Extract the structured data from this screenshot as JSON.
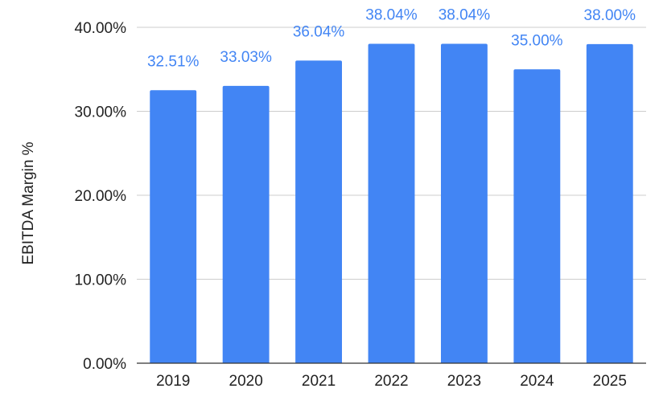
{
  "chart_data": {
    "type": "bar",
    "categories": [
      "2019",
      "2020",
      "2021",
      "2022",
      "2023",
      "2024",
      "2025"
    ],
    "values": [
      32.51,
      33.03,
      36.04,
      38.04,
      38.04,
      35.0,
      38.0
    ],
    "data_labels": [
      "32.51%",
      "33.03%",
      "36.04%",
      "38.04%",
      "38.04%",
      "35.00%",
      "38.00%"
    ],
    "ylabel": "EBITDA Margin %",
    "yticks": [
      0,
      10,
      20,
      30,
      40
    ],
    "ytick_labels": [
      "0.00%",
      "10.00%",
      "20.00%",
      "30.00%",
      "40.00%"
    ],
    "ylim": [
      0,
      40
    ],
    "grid": true,
    "bar_color": "#4285f4",
    "label_color": "#4285f4",
    "grid_color": "#cccccc",
    "axis_color": "#333333"
  }
}
